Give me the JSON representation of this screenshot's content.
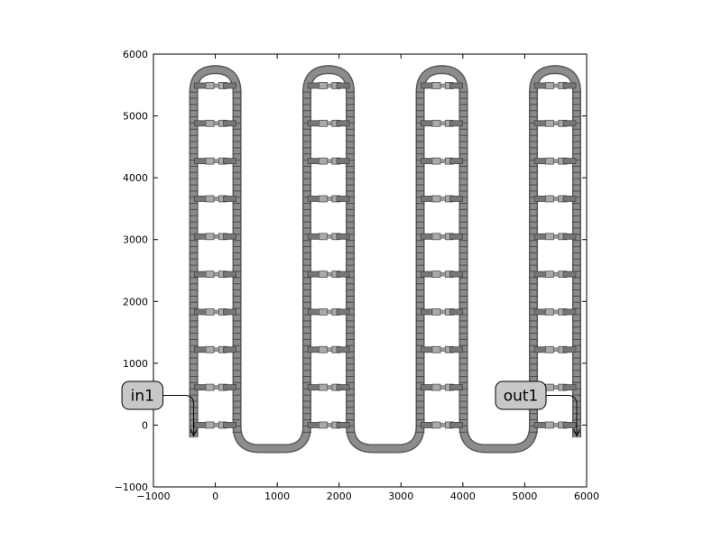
{
  "chart_data": {
    "type": "diagram",
    "title": "",
    "xlabel": "",
    "ylabel": "",
    "xlim": [
      -1000,
      6000
    ],
    "ylim": [
      -1000,
      6000
    ],
    "x_ticks": [
      -1000,
      0,
      1000,
      2000,
      3000,
      4000,
      5000,
      6000
    ],
    "y_ticks": [
      -1000,
      0,
      1000,
      2000,
      3000,
      4000,
      5000,
      6000
    ],
    "x_tick_labels": [
      "−1000",
      "0",
      "1000",
      "2000",
      "3000",
      "4000",
      "5000",
      "6000"
    ],
    "y_tick_labels": [
      "−1000",
      "0",
      "1000",
      "2000",
      "3000",
      "4000",
      "5000",
      "6000"
    ],
    "waveguide": {
      "color": "#8c8c8c",
      "columns": [
        {
          "x_left": -350,
          "x_right": 350
        },
        {
          "x_left": 1480,
          "x_right": 2180
        },
        {
          "x_left": 3310,
          "x_right": 4010
        },
        {
          "x_left": 5140,
          "x_right": 5840
        }
      ],
      "y_start": -200,
      "y_top": 5750,
      "y_bottom": -380,
      "pad_rows_y": [
        0,
        610,
        1220,
        1830,
        2440,
        3050,
        3660,
        4270,
        4880,
        5490
      ]
    },
    "ports": [
      {
        "label": "in1",
        "x": -350,
        "y": 480,
        "arrow_to": [
          -350,
          -180
        ]
      },
      {
        "label": "out1",
        "x": 5840,
        "y": 480,
        "arrow_to": [
          5840,
          -180
        ]
      }
    ]
  }
}
